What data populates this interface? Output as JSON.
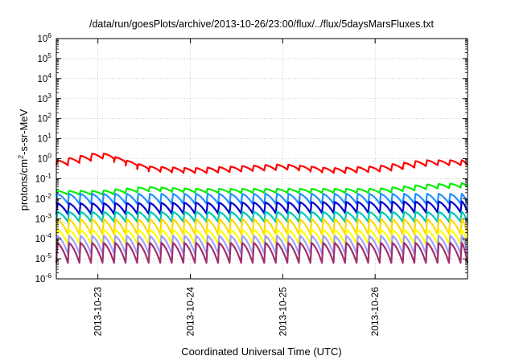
{
  "chart_data": {
    "type": "line",
    "title": "/data/run/goesPlots/archive/2013-10-26/23:00/flux/../flux/5daysMarsFluxes.txt",
    "xlabel": "Coordinated Universal Time (UTC)",
    "ylabel": {
      "base": "protons/cm",
      "sup": "2",
      "rest": "-s-sr-MeV"
    },
    "yscale": "log",
    "grid": true,
    "ylim_exp": [
      -6,
      6
    ],
    "y_tick_labels": [
      {
        "exp": -6,
        "base": "10",
        "sup": "-6"
      },
      {
        "exp": -5,
        "base": "10",
        "sup": "-5"
      },
      {
        "exp": -4,
        "base": "10",
        "sup": "-4"
      },
      {
        "exp": -3,
        "base": "10",
        "sup": "-3"
      },
      {
        "exp": -2,
        "base": "10",
        "sup": "-2"
      },
      {
        "exp": -1,
        "base": "10",
        "sup": "-1"
      },
      {
        "exp": 0,
        "base": "10",
        "sup": "0"
      },
      {
        "exp": 1,
        "base": "10",
        "sup": "1"
      },
      {
        "exp": 2,
        "base": "10",
        "sup": "2"
      },
      {
        "exp": 3,
        "base": "10",
        "sup": "3"
      },
      {
        "exp": 4,
        "base": "10",
        "sup": "4"
      },
      {
        "exp": 5,
        "base": "10",
        "sup": "5"
      },
      {
        "exp": 6,
        "base": "10",
        "sup": "6"
      }
    ],
    "xlim_days": [
      -0.45,
      4.0
    ],
    "x_ticks": [
      {
        "day": 0,
        "label": "2013-10-23"
      },
      {
        "day": 1,
        "label": "2013-10-24"
      },
      {
        "day": 2,
        "label": "2013-10-25"
      },
      {
        "day": 3,
        "label": "2013-10-26"
      }
    ],
    "series": [
      {
        "color": "#ff0000",
        "lo": -0.45,
        "hi": -0.2,
        "amp": [
          [
            -0.45,
            -0.2
          ],
          [
            0.0,
            0.2
          ],
          [
            0.5,
            -0.5
          ],
          [
            1.0,
            -0.6
          ],
          [
            1.5,
            -0.5
          ],
          [
            2.0,
            -0.4
          ],
          [
            2.5,
            -0.6
          ],
          [
            3.0,
            -0.5
          ],
          [
            3.5,
            -0.2
          ],
          [
            4.0,
            -0.2
          ]
        ]
      },
      {
        "color": "#00ee00",
        "lo": -1.75,
        "hi": -1.55,
        "amp": [
          [
            -0.45,
            -1.7
          ],
          [
            0.0,
            -1.7
          ],
          [
            0.5,
            -1.5
          ],
          [
            1.0,
            -1.6
          ],
          [
            1.5,
            -1.6
          ],
          [
            2.0,
            -1.6
          ],
          [
            2.5,
            -1.6
          ],
          [
            3.0,
            -1.6
          ],
          [
            3.5,
            -1.4
          ],
          [
            4.0,
            -1.3
          ]
        ]
      },
      {
        "color": "#1e90ff",
        "lo": -2.35,
        "hi": -1.85,
        "amp": [
          [
            -0.45,
            -2.0
          ],
          [
            4.0,
            -2.0
          ]
        ]
      },
      {
        "color": "#0000cc",
        "lo": -2.8,
        "hi": -2.25,
        "amp": [
          [
            -0.45,
            -2.5
          ],
          [
            4.0,
            -2.4
          ]
        ]
      },
      {
        "color": "#00c8b4",
        "lo": -3.15,
        "hi": -2.65,
        "amp": [
          [
            -0.45,
            -2.9
          ],
          [
            4.0,
            -2.9
          ]
        ]
      },
      {
        "color": "#ffd700",
        "lo": -3.8,
        "hi": -3.05,
        "amp": [
          [
            -0.45,
            -3.4
          ],
          [
            4.0,
            -3.4
          ]
        ]
      },
      {
        "color": "#ffff00",
        "lo": -4.2,
        "hi": -3.5,
        "amp": [
          [
            -0.45,
            -3.9
          ],
          [
            4.0,
            -3.9
          ]
        ]
      },
      {
        "color": "#a0a0ff",
        "lo": -4.7,
        "hi": -3.8,
        "amp": [
          [
            -0.45,
            -4.3
          ],
          [
            4.0,
            -4.3
          ]
        ]
      },
      {
        "color": "#a0306e",
        "lo": -5.15,
        "hi": -4.15,
        "amp": [
          [
            -0.45,
            -4.7
          ],
          [
            4.0,
            -4.7
          ]
        ]
      }
    ]
  }
}
